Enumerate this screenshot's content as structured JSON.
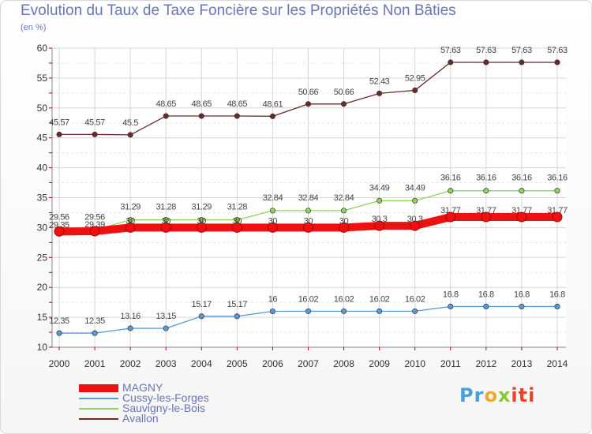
{
  "chart_data": {
    "type": "line",
    "title": "Evolution du Taux de Taxe Foncière sur les Propriétés Non Bâties",
    "ylabel": "(en %)",
    "xlabel": "",
    "categories": [
      "2000",
      "2001",
      "2002",
      "2003",
      "2004",
      "2005",
      "2006",
      "2007",
      "2008",
      "2009",
      "2010",
      "2011",
      "2012",
      "2013",
      "2014"
    ],
    "yticks": [
      10,
      15,
      20,
      25,
      30,
      35,
      40,
      45,
      50,
      55,
      60
    ],
    "ylim": [
      10,
      60
    ],
    "grid": true,
    "legend_position": "bottom-left",
    "series": [
      {
        "name": "MAGNY",
        "color": "#ee1111",
        "thick": true,
        "values": [
          29.35,
          29.39,
          30,
          30,
          30,
          30,
          30,
          30,
          30,
          30.3,
          30.3,
          31.77,
          31.77,
          31.77,
          31.77
        ],
        "labels": [
          "29.35",
          "29.39",
          "30",
          "30",
          "30",
          "30",
          "30",
          "30",
          "30",
          "30.3",
          "30.3",
          "31.77",
          "31.77",
          "31.77",
          "31.77"
        ]
      },
      {
        "name": "Cussy-les-Forges",
        "color": "#5b9bd5",
        "thick": false,
        "values": [
          12.35,
          12.35,
          13.16,
          13.15,
          15.17,
          15.17,
          16,
          16.02,
          16.02,
          16.02,
          16.02,
          16.8,
          16.8,
          16.8,
          16.8
        ],
        "labels": [
          "12.35",
          "12.35",
          "13.16",
          "13.15",
          "15.17",
          "15.17",
          "16",
          "16.02",
          "16.02",
          "16.02",
          "16.02",
          "16.8",
          "16.8",
          "16.8",
          "16.8"
        ]
      },
      {
        "name": "Sauvigny-le-Bois",
        "color": "#8fd35a",
        "thick": false,
        "values": [
          29.56,
          29.56,
          31.29,
          31.28,
          31.29,
          31.28,
          32.84,
          32.84,
          32.84,
          34.49,
          34.49,
          36.16,
          36.16,
          36.16,
          36.16
        ],
        "labels": [
          "29.56",
          "29.56",
          "31.29",
          "31.28",
          "31.29",
          "31.28",
          "32.84",
          "32.84",
          "32.84",
          "34.49",
          "34.49",
          "36.16",
          "36.16",
          "36.16",
          "36.16"
        ]
      },
      {
        "name": "Avallon",
        "color": "#6b2a2a",
        "thick": false,
        "values": [
          45.57,
          45.57,
          45.5,
          48.65,
          48.65,
          48.65,
          48.61,
          50.66,
          50.66,
          52.43,
          52.95,
          57.63,
          57.63,
          57.63,
          57.63
        ],
        "labels": [
          "45.57",
          "45.57",
          "45.5",
          "48.65",
          "48.65",
          "48.65",
          "48.61",
          "50.66",
          "50.66",
          "52.43",
          "52.95",
          "57.63",
          "57.63",
          "57.63",
          "57.63"
        ]
      }
    ]
  },
  "logo": {
    "p1": "Pr",
    "p2": "o",
    "p3": "x",
    "p4": "iti"
  }
}
